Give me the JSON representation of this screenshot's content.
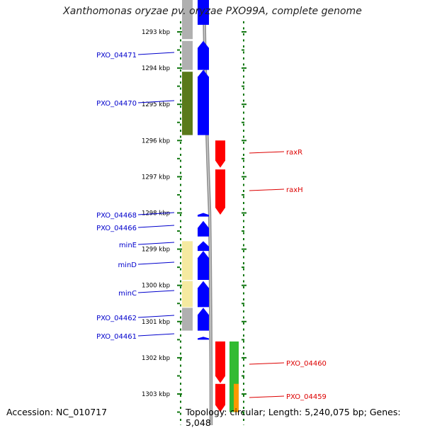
{
  "title": "Xanthomonas oryzae pv. oryzae PXO99A, complete genome",
  "footer": {
    "accession": "Accession: NC_010717",
    "summary": "Topology: circular; Length: 5,240,075 bp; Genes: 5,048"
  },
  "colors": {
    "blue_gene": "#0000ff",
    "red_gene": "#ff0000",
    "olive_gene": "#5a7a1a",
    "gray_gene": "#b0b0b0",
    "pale_yellow_gene": "#f5eaa0",
    "green_gene": "#33bb33",
    "orange_gene": "#ff9900",
    "tick_green": "#117711",
    "backbone_gray": "#909090",
    "blue_label": "#0000cc",
    "red_label": "#dd0000"
  },
  "ruler": {
    "ticks": [
      {
        "label": "1293 kbp",
        "kbp": 1293
      },
      {
        "label": "1294 kbp",
        "kbp": 1294
      },
      {
        "label": "1295 kbp",
        "kbp": 1295
      },
      {
        "label": "1296 kbp",
        "kbp": 1296
      },
      {
        "label": "1297 kbp",
        "kbp": 1297
      },
      {
        "label": "1298 kbp",
        "kbp": 1298
      },
      {
        "label": "1299 kbp",
        "kbp": 1299
      },
      {
        "label": "1300 kbp",
        "kbp": 1300
      },
      {
        "label": "1301 kbp",
        "kbp": 1301
      },
      {
        "label": "1302 kbp",
        "kbp": 1302
      },
      {
        "label": "1303 kbp",
        "kbp": 1303
      }
    ]
  },
  "genes": [
    {
      "name": "PXO_04471",
      "strand": "+",
      "start_kbp": 1293.25,
      "end_kbp": 1294.05,
      "lane": "plus_outer",
      "color": "#0000ff"
    },
    {
      "name": "PXO_04470",
      "strand": "+",
      "start_kbp": 1294.05,
      "end_kbp": 1295.85,
      "lane": "plus_outer",
      "color": "#0000ff"
    },
    {
      "name": "PXO_04468",
      "strand": "+",
      "start_kbp": 1298.0,
      "end_kbp": 1298.1,
      "lane": "plus_outer",
      "color": "#0000ff"
    },
    {
      "name": "PXO_04466",
      "strand": "+",
      "start_kbp": 1298.22,
      "end_kbp": 1298.65,
      "lane": "plus_outer",
      "color": "#0000ff"
    },
    {
      "name": "minE",
      "strand": "+",
      "start_kbp": 1298.78,
      "end_kbp": 1299.05,
      "lane": "plus_outer",
      "color": "#0000ff"
    },
    {
      "name": "minD",
      "strand": "+",
      "start_kbp": 1299.05,
      "end_kbp": 1299.85,
      "lane": "plus_outer",
      "color": "#0000ff"
    },
    {
      "name": "minC",
      "strand": "+",
      "start_kbp": 1299.88,
      "end_kbp": 1300.6,
      "lane": "plus_outer",
      "color": "#0000ff"
    },
    {
      "name": "PXO_04462",
      "strand": "+",
      "start_kbp": 1300.62,
      "end_kbp": 1301.25,
      "lane": "plus_outer",
      "color": "#0000ff"
    },
    {
      "name": "PXO_04461",
      "strand": "+",
      "start_kbp": 1301.42,
      "end_kbp": 1301.5,
      "lane": "plus_outer",
      "color": "#0000ff"
    },
    {
      "name": "raxR",
      "strand": "-",
      "start_kbp": 1296.0,
      "end_kbp": 1296.75,
      "lane": "minus_inner",
      "color": "#ff0000"
    },
    {
      "name": "raxH",
      "strand": "-",
      "start_kbp": 1296.8,
      "end_kbp": 1298.05,
      "lane": "minus_inner",
      "color": "#ff0000"
    },
    {
      "name": "PXO_04460",
      "strand": "-",
      "start_kbp": 1301.55,
      "end_kbp": 1302.7,
      "lane": "minus_inner",
      "color": "#ff0000"
    },
    {
      "name": "PXO_04459",
      "strand": "-",
      "start_kbp": 1302.72,
      "end_kbp": 1303.5,
      "lane": "minus_inner",
      "color": "#ff0000"
    }
  ],
  "features": [
    {
      "kind": "gray",
      "lane": "plus_inner",
      "start_kbp": 1292.0,
      "end_kbp": 1293.2,
      "color": "#b0b0b0"
    },
    {
      "kind": "gray",
      "lane": "plus_inner",
      "start_kbp": 1293.25,
      "end_kbp": 1294.05,
      "color": "#b0b0b0"
    },
    {
      "kind": "olive",
      "lane": "plus_inner",
      "start_kbp": 1294.1,
      "end_kbp": 1295.85,
      "color": "#5a7a1a"
    },
    {
      "kind": "pale",
      "lane": "plus_inner",
      "start_kbp": 1298.78,
      "end_kbp": 1299.85,
      "color": "#f5eaa0"
    },
    {
      "kind": "pale",
      "lane": "plus_inner",
      "start_kbp": 1299.88,
      "end_kbp": 1300.6,
      "color": "#f5eaa0"
    },
    {
      "kind": "gray",
      "lane": "plus_inner",
      "start_kbp": 1300.62,
      "end_kbp": 1301.25,
      "color": "#b0b0b0"
    },
    {
      "kind": "green",
      "lane": "minus_outer",
      "start_kbp": 1301.55,
      "end_kbp": 1303.5,
      "color": "#33bb33"
    },
    {
      "kind": "orange",
      "lane": "minus_outer2",
      "start_kbp": 1302.72,
      "end_kbp": 1303.5,
      "color": "#ff9900"
    }
  ]
}
